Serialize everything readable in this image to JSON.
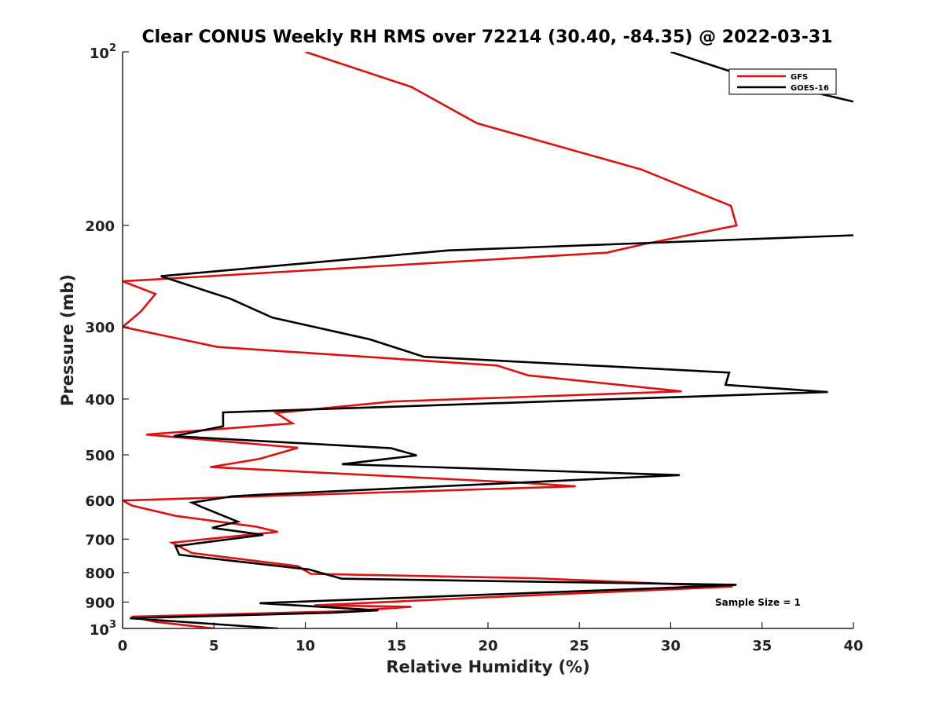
{
  "chart_data": {
    "type": "line",
    "title": "Clear CONUS Weekly RH RMS over 72214 (30.40, -84.35) @ 2022-03-31",
    "xlabel": "Relative Humidity (%)",
    "ylabel": "Pressure (mb)",
    "xlim": [
      0,
      40
    ],
    "ylim": [
      100,
      1000
    ],
    "yscale": "log",
    "yreversed": true,
    "x_ticks": [
      0,
      5,
      10,
      15,
      20,
      25,
      30,
      35,
      40
    ],
    "x_tick_labels": [
      "0",
      "5",
      "10",
      "15",
      "20",
      "25",
      "30",
      "35",
      "40"
    ],
    "y_ticks": [
      200,
      300,
      400,
      500,
      600,
      700,
      800,
      900
    ],
    "y_tick_labels": [
      "200",
      "300",
      "400",
      "500",
      "600",
      "700",
      "800",
      "900"
    ],
    "y_decade_ticks": [
      {
        "value": 100,
        "base": "10",
        "exp": "2"
      },
      {
        "value": 1000,
        "base": "10",
        "exp": "3"
      }
    ],
    "grid": false,
    "legend_position": "top-right",
    "annotation": "Sample Size = 1",
    "series": [
      {
        "name": "GFS",
        "color": "#e01010",
        "points": [
          [
            10.0,
            100
          ],
          [
            15.8,
            115
          ],
          [
            19.4,
            133
          ],
          [
            28.4,
            160
          ],
          [
            33.3,
            185
          ],
          [
            33.6,
            200
          ],
          [
            28.4,
            216
          ],
          [
            26.5,
            223
          ],
          [
            0.0,
            250
          ],
          [
            1.8,
            263
          ],
          [
            1.0,
            282
          ],
          [
            0.0,
            300
          ],
          [
            5.2,
            325
          ],
          [
            20.5,
            350
          ],
          [
            22.2,
            364
          ],
          [
            30.6,
            388
          ],
          [
            14.8,
            404
          ],
          [
            8.4,
            423
          ],
          [
            9.3,
            441
          ],
          [
            1.3,
            461
          ],
          [
            9.6,
            486
          ],
          [
            7.5,
            508
          ],
          [
            4.8,
            525
          ],
          [
            21.9,
            559
          ],
          [
            24.8,
            567
          ],
          [
            0.0,
            600
          ],
          [
            0.5,
            612
          ],
          [
            2.9,
            638
          ],
          [
            7.3,
            666
          ],
          [
            8.5,
            680
          ],
          [
            2.7,
            710
          ],
          [
            3.8,
            740
          ],
          [
            9.6,
            780
          ],
          [
            10.3,
            804
          ],
          [
            22.5,
            818
          ],
          [
            33.4,
            846
          ],
          [
            20.0,
            883
          ],
          [
            10.5,
            912
          ],
          [
            15.8,
            917
          ],
          [
            12.4,
            933
          ],
          [
            0.5,
            954
          ],
          [
            1.8,
            974
          ],
          [
            5.0,
            1000
          ]
        ]
      },
      {
        "name": "GOES-16",
        "color": "#000000",
        "points": [
          [
            30.0,
            100
          ],
          [
            34.0,
            110
          ],
          [
            40.0,
            122
          ],
          [
            null,
            null
          ],
          [
            40.0,
            208
          ],
          [
            17.8,
            221
          ],
          [
            2.1,
            245
          ],
          [
            5.9,
            268
          ],
          [
            8.2,
            289
          ],
          [
            13.5,
            315
          ],
          [
            16.5,
            338
          ],
          [
            33.2,
            360
          ],
          [
            33.0,
            378
          ],
          [
            38.6,
            389
          ],
          [
            5.5,
            422
          ],
          [
            5.5,
            446
          ],
          [
            2.8,
            464
          ],
          [
            14.7,
            487
          ],
          [
            16.1,
            501
          ],
          [
            12.0,
            519
          ],
          [
            30.5,
            542
          ],
          [
            7.7,
            586
          ],
          [
            6.0,
            590
          ],
          [
            3.8,
            605
          ],
          [
            4.4,
            617
          ],
          [
            6.3,
            653
          ],
          [
            4.9,
            669
          ],
          [
            7.7,
            688
          ],
          [
            2.9,
            720
          ],
          [
            3.1,
            745
          ],
          [
            10.2,
            790
          ],
          [
            12.0,
            820
          ],
          [
            33.6,
            840
          ],
          [
            30.0,
            850
          ],
          [
            7.5,
            904
          ],
          [
            14.0,
            930
          ],
          [
            11.5,
            939
          ],
          [
            0.4,
            960
          ],
          [
            8.5,
            1000
          ]
        ]
      }
    ]
  }
}
